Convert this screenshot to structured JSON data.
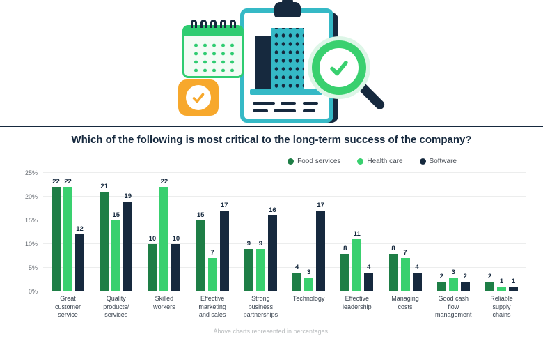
{
  "title": "Which of the following is most critical to the long-term success of the company?",
  "footnote": "Above charts represented in percentages.",
  "illustration": {
    "description": "Clipboard with building report, calendar, orange check badge and magnifying glass with green checkmark"
  },
  "colors": {
    "teal": "#35b9c6",
    "navy": "#16293e",
    "bright_green": "#39d06f",
    "dark_green": "#1e7e46",
    "orange": "#f7a82c"
  },
  "chart_data": {
    "type": "bar",
    "title": "Which of the following is most critical to the long-term success of the company?",
    "categories": [
      "Great\ncustomer\nservice",
      "Quality\nproducts/\nservices",
      "Skilled\nworkers",
      "Effective\nmarketing\nand sales",
      "Strong\nbusiness\npartnerships",
      "Technology",
      "Effective\nleadership",
      "Managing\ncosts",
      "Good cash\nflow\nmanagement",
      "Reliable\nsupply\nchains"
    ],
    "series": [
      {
        "name": "Food services",
        "color": "#1e7e46",
        "values": [
          22,
          21,
          10,
          15,
          9,
          4,
          8,
          8,
          2,
          2
        ]
      },
      {
        "name": "Health care",
        "color": "#39d06f",
        "values": [
          22,
          15,
          22,
          7,
          9,
          3,
          11,
          7,
          3,
          1
        ]
      },
      {
        "name": "Software",
        "color": "#16293e",
        "values": [
          12,
          19,
          10,
          17,
          16,
          17,
          4,
          4,
          2,
          1
        ]
      }
    ],
    "ylim": [
      0,
      25
    ],
    "yticks": [
      "0%",
      "5%",
      "10%",
      "15%",
      "20%",
      "25%"
    ],
    "grid": true,
    "legend_position": "top-right",
    "value_labels": true
  }
}
